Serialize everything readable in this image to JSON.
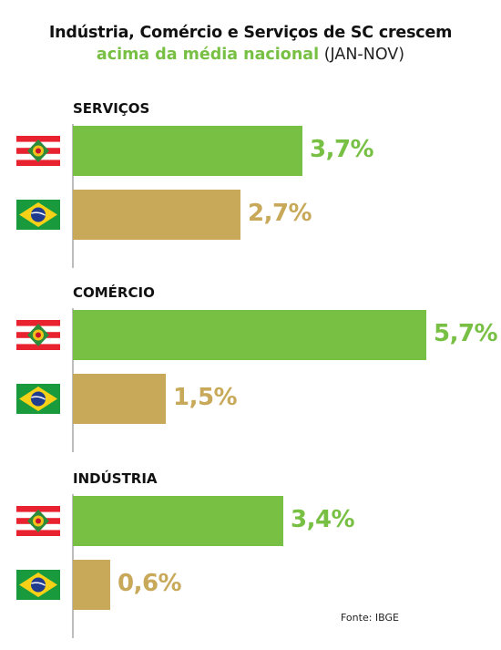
{
  "title": {
    "line1": "Indústria, Comércio e Serviços de SC crescem",
    "line2_highlight": "acima da média nacional",
    "line2_rest": "(JAN-NOV)"
  },
  "source": "Fonte: IBGE",
  "colors": {
    "sc": "#77c044",
    "brasil": "#c8a95a",
    "axis": "#bdbdbd"
  },
  "icons": {
    "sc": "santa-catarina-flag-icon",
    "brasil": "brazil-flag-icon"
  },
  "chart_data": {
    "type": "bar",
    "orientation": "horizontal",
    "unit": "%",
    "groups": [
      {
        "label": "SERVIÇOS",
        "bars": [
          {
            "entity": "Santa Catarina",
            "value": 3.7,
            "label": "3,7%"
          },
          {
            "entity": "Brasil",
            "value": 2.7,
            "label": "2,7%"
          }
        ]
      },
      {
        "label": "COMÉRCIO",
        "bars": [
          {
            "entity": "Santa Catarina",
            "value": 5.7,
            "label": "5,7%"
          },
          {
            "entity": "Brasil",
            "value": 1.5,
            "label": "1,5%"
          }
        ]
      },
      {
        "label": "INDÚSTRIA",
        "bars": [
          {
            "entity": "Santa Catarina",
            "value": 3.4,
            "label": "3,4%"
          },
          {
            "entity": "Brasil",
            "value": 0.6,
            "label": "0,6%"
          }
        ]
      }
    ],
    "xlim": [
      0,
      5.7
    ],
    "grid": false,
    "legend": "none"
  }
}
